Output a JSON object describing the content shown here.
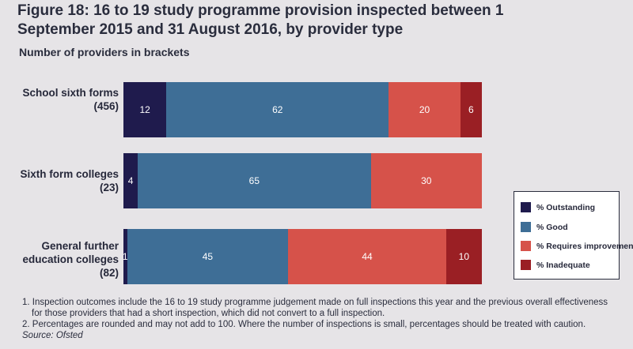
{
  "title": "Figure 18: 16 to 19 study programme provision inspected between 1 September 2015 and 31 August 2016, by provider type",
  "subtitle": "Number of providers in brackets",
  "colors": {
    "outstanding": "#1f1b4d",
    "good": "#3e6e96",
    "requires_improvement": "#d6524a",
    "inadequate": "#9a1f24"
  },
  "chart_data": {
    "type": "bar",
    "orientation": "horizontal",
    "stacked": true,
    "unit": "%",
    "xlim": [
      0,
      100
    ],
    "grid": false,
    "legend_position": "right",
    "categories": [
      {
        "label_line1": "School sixth forms",
        "label_line2": "(456)"
      },
      {
        "label_line1": "Sixth form colleges",
        "label_line2": "(23)"
      },
      {
        "label_line1": "General further",
        "label_line2": "education colleges",
        "label_line3": "(82)"
      }
    ],
    "series": [
      {
        "name": "% Outstanding",
        "key": "outstanding",
        "values": [
          12,
          4,
          1
        ]
      },
      {
        "name": "% Good",
        "key": "good",
        "values": [
          62,
          65,
          45
        ]
      },
      {
        "name": "% Requires improvement",
        "key": "requires_improvement",
        "values": [
          20,
          30,
          44
        ]
      },
      {
        "name": "% Inadequate",
        "key": "inadequate",
        "values": [
          6,
          null,
          10
        ]
      }
    ]
  },
  "notes": {
    "note1_line1": "1. Inspection outcomes include the 16 to 19 study programme judgement made on full inspections this year and the previous overall effectiveness",
    "note1_line2": "for those providers that had a short inspection, which did not convert to a full inspection.",
    "note2": "2. Percentages are rounded and may not add to 100. Where the number of inspections is small, percentages should be treated with caution.",
    "source": "Source: Ofsted"
  }
}
